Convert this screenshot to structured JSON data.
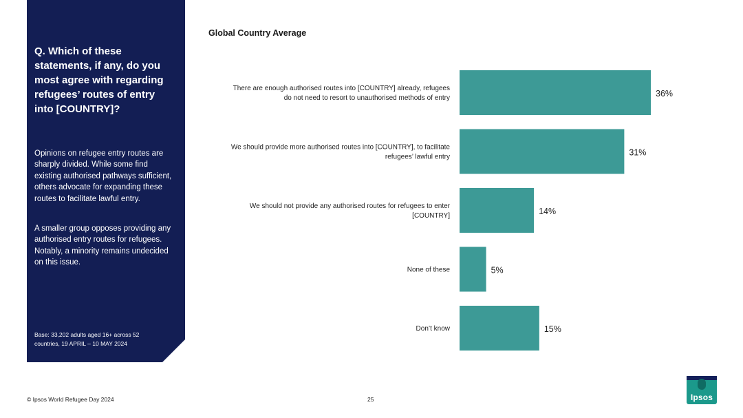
{
  "panel": {
    "question": "Q. Which of these statements, if any, do you most agree with regarding refugees’ routes of entry into [COUNTRY]?",
    "paragraph1": "Opinions on refugee entry routes are sharply divided. While some find existing authorised pathways sufficient, others advocate for expanding these routes to facilitate lawful entry.",
    "paragraph2": "A smaller group opposes providing any authorised entry routes for refugees. Notably, a minority remains undecided on this issue.",
    "base": "Base: 33,202 adults aged 16+ across 52 countries, 19 APRIL – 10 MAY 2024"
  },
  "footer": {
    "source": "© Ipsos World Refugee Day 2024",
    "page": "25"
  },
  "logo": {
    "text": "Ipsos"
  },
  "colors": {
    "panel": "#131e54",
    "bar": "#3d9a96",
    "logo": "#1b998b"
  },
  "chart_data": {
    "type": "bar",
    "orientation": "horizontal",
    "title": "Global Country Average",
    "categories": [
      [
        "There are enough authorised routes into [COUNTRY] already, refugees",
        "do not need to resort to unauthorised methods of entry"
      ],
      [
        "We should provide more authorised routes into [COUNTRY], to facilitate",
        "refugees’ lawful entry"
      ],
      [
        "We should not provide any authorised routes for refugees to enter",
        "[COUNTRY]"
      ],
      [
        "None of these"
      ],
      [
        "Don’t know"
      ]
    ],
    "values": [
      36,
      31,
      14,
      5,
      15
    ],
    "value_suffix": "%",
    "xlim": [
      0,
      36
    ]
  }
}
